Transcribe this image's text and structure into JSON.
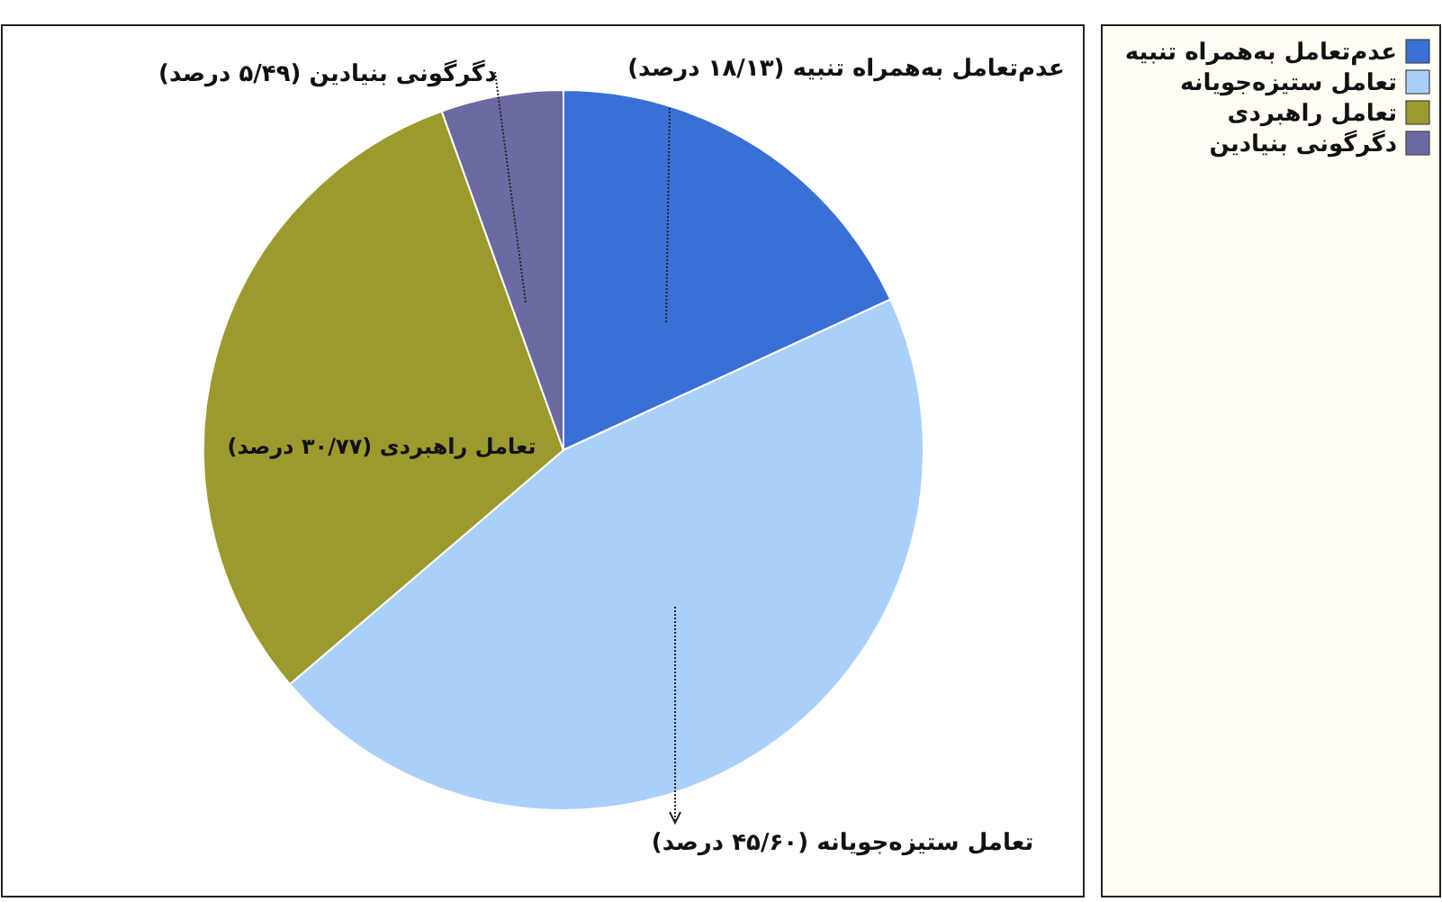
{
  "chart_data": {
    "type": "pie",
    "categories": [
      "عدم‌تعامل به‌همراه تنبیه",
      "تعامل ستیزه‌جویانه",
      "تعامل راهبردی",
      "دگرگونی بنیادین"
    ],
    "values": [
      18.13,
      45.6,
      30.77,
      5.49
    ],
    "colors": [
      "#3a6fd6",
      "#a8d0fb",
      "#9c9a2c",
      "#6b6aa3"
    ],
    "value_labels": [
      "عدم‌تعامل به‌همراه تنبیه (۱۸/۱۳ درصد)",
      "تعامل ستیزه‌جویانه (۴۵/۶۰ درصد)",
      "تعامل راهبردی (۳۰/۷۷ درصد)",
      "دگرگونی بنیادین (۵/۴۹ درصد)"
    ],
    "legend": "right"
  }
}
